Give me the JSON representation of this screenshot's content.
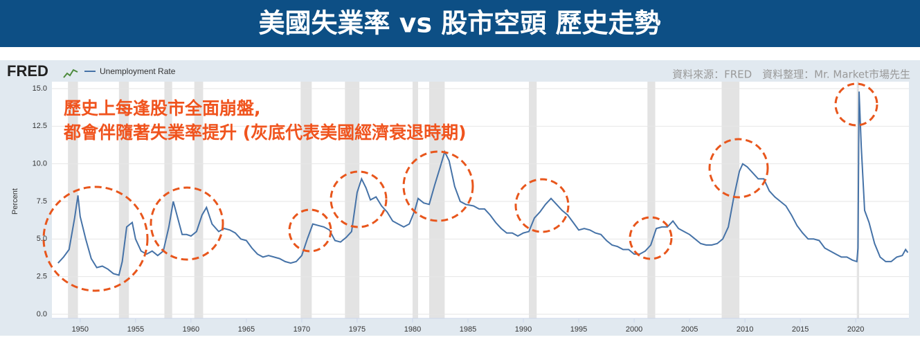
{
  "chart_data": {
    "type": "line",
    "title": "美國失業率 vs 股市空頭 歷史走勢",
    "brand": "FRED",
    "source": "資料來源：FRED　資料整理：Mr. Market市場先生",
    "annotation": [
      "歷史上每逢股市全面崩盤,",
      "都會伴隨著失業率提升 (灰底代表美國經濟衰退時期)"
    ],
    "ylabel": "Percent",
    "xlim": [
      1947.45,
      2024.8
    ],
    "xticks": [
      1950,
      1955,
      1960,
      1965,
      1970,
      1975,
      1980,
      1985,
      1990,
      1995,
      2000,
      2005,
      2010,
      2015,
      2020
    ],
    "ylim": [
      0,
      15
    ],
    "yticks": [
      {
        "value": 0,
        "label": "0.0"
      },
      {
        "value": 2.5,
        "label": "2.5"
      },
      {
        "value": 5,
        "label": "5.0"
      },
      {
        "value": 7.5,
        "label": "7.5"
      },
      {
        "value": 10,
        "label": "10.0"
      },
      {
        "value": 12.5,
        "label": "12.5"
      },
      {
        "value": 15,
        "label": "15.0"
      }
    ],
    "grid": true,
    "recessions": [
      [
        1948.9,
        1949.8
      ],
      [
        1953.5,
        1954.4
      ],
      [
        1957.6,
        1958.3
      ],
      [
        1960.3,
        1961.1
      ],
      [
        1969.9,
        1970.9
      ],
      [
        1973.9,
        1975.2
      ],
      [
        1980.0,
        1980.5
      ],
      [
        1981.5,
        1982.9
      ],
      [
        1990.5,
        1991.2
      ],
      [
        2001.2,
        2001.9
      ],
      [
        2007.9,
        2009.5
      ],
      [
        2020.1,
        2020.3
      ]
    ],
    "series": [
      {
        "name": "Unemployment Rate",
        "color": "#4572a7",
        "x": [
          1948.0,
          1948.5,
          1949.0,
          1949.5,
          1949.8,
          1950.0,
          1950.5,
          1951.0,
          1951.5,
          1952.0,
          1952.5,
          1953.0,
          1953.5,
          1953.8,
          1954.2,
          1954.7,
          1955.0,
          1955.5,
          1956.0,
          1956.5,
          1957.0,
          1957.5,
          1958.0,
          1958.4,
          1958.8,
          1959.2,
          1959.6,
          1960.0,
          1960.5,
          1961.0,
          1961.4,
          1961.9,
          1962.5,
          1963.0,
          1963.5,
          1964.0,
          1964.5,
          1965.0,
          1965.5,
          1966.0,
          1966.5,
          1967.0,
          1967.5,
          1968.0,
          1968.5,
          1969.0,
          1969.5,
          1970.0,
          1970.5,
          1971.0,
          1971.5,
          1972.0,
          1972.5,
          1973.0,
          1973.5,
          1974.0,
          1974.5,
          1975.0,
          1975.4,
          1975.8,
          1976.2,
          1976.7,
          1977.2,
          1977.7,
          1978.2,
          1978.7,
          1979.2,
          1979.7,
          1980.2,
          1980.5,
          1981.0,
          1981.5,
          1982.0,
          1982.5,
          1982.9,
          1983.3,
          1983.8,
          1984.3,
          1984.8,
          1985.5,
          1986.0,
          1986.5,
          1987.0,
          1987.5,
          1988.0,
          1988.5,
          1989.0,
          1989.5,
          1990.0,
          1990.5,
          1991.0,
          1991.5,
          1992.0,
          1992.5,
          1993.0,
          1993.5,
          1994.0,
          1994.5,
          1995.0,
          1995.5,
          1996.0,
          1996.5,
          1997.0,
          1997.5,
          1998.0,
          1998.5,
          1999.0,
          1999.5,
          2000.0,
          2000.5,
          2001.0,
          2001.5,
          2002.0,
          2002.5,
          2003.0,
          2003.5,
          2004.0,
          2004.5,
          2005.0,
          2005.5,
          2006.0,
          2006.5,
          2007.0,
          2007.5,
          2008.0,
          2008.5,
          2009.0,
          2009.5,
          2009.8,
          2010.2,
          2010.7,
          2011.2,
          2011.7,
          2012.2,
          2012.7,
          2013.2,
          2013.7,
          2014.2,
          2014.7,
          2015.2,
          2015.7,
          2016.2,
          2016.7,
          2017.2,
          2017.7,
          2018.2,
          2018.7,
          2019.2,
          2019.7,
          2020.1,
          2020.2,
          2020.3,
          2020.5,
          2020.8,
          2021.2,
          2021.7,
          2022.2,
          2022.7,
          2023.2,
          2023.7,
          2024.2,
          2024.5,
          2024.7
        ],
        "values": [
          3.4,
          3.8,
          4.3,
          6.4,
          7.9,
          6.5,
          5.0,
          3.7,
          3.1,
          3.2,
          3.0,
          2.7,
          2.6,
          3.5,
          5.8,
          6.1,
          5.0,
          4.2,
          4.0,
          4.2,
          3.9,
          4.2,
          5.8,
          7.5,
          6.4,
          5.3,
          5.3,
          5.2,
          5.5,
          6.6,
          7.1,
          6.0,
          5.5,
          5.7,
          5.6,
          5.4,
          5.0,
          4.9,
          4.4,
          4.0,
          3.8,
          3.9,
          3.8,
          3.7,
          3.5,
          3.4,
          3.5,
          3.9,
          5.0,
          6.0,
          5.9,
          5.8,
          5.6,
          4.9,
          4.8,
          5.1,
          5.5,
          8.1,
          9.0,
          8.4,
          7.6,
          7.8,
          7.2,
          6.8,
          6.2,
          6.0,
          5.8,
          6.0,
          6.9,
          7.7,
          7.4,
          7.3,
          8.6,
          9.8,
          10.8,
          10.2,
          8.5,
          7.5,
          7.3,
          7.2,
          7.0,
          7.0,
          6.6,
          6.1,
          5.7,
          5.4,
          5.4,
          5.2,
          5.4,
          5.5,
          6.4,
          6.8,
          7.3,
          7.7,
          7.3,
          6.9,
          6.6,
          6.1,
          5.6,
          5.7,
          5.6,
          5.4,
          5.3,
          4.9,
          4.6,
          4.5,
          4.3,
          4.3,
          4.0,
          4.0,
          4.2,
          4.6,
          5.7,
          5.8,
          5.8,
          6.2,
          5.7,
          5.5,
          5.3,
          5.0,
          4.7,
          4.6,
          4.6,
          4.7,
          5.0,
          5.8,
          7.8,
          9.5,
          10.0,
          9.8,
          9.4,
          9.0,
          9.0,
          8.2,
          7.8,
          7.5,
          7.2,
          6.6,
          5.9,
          5.4,
          5.0,
          5.0,
          4.9,
          4.4,
          4.2,
          4.0,
          3.8,
          3.8,
          3.6,
          3.5,
          4.4,
          14.8,
          11.1,
          6.9,
          6.1,
          4.7,
          3.8,
          3.5,
          3.5,
          3.8,
          3.9,
          4.3,
          4.1
        ]
      }
    ]
  }
}
